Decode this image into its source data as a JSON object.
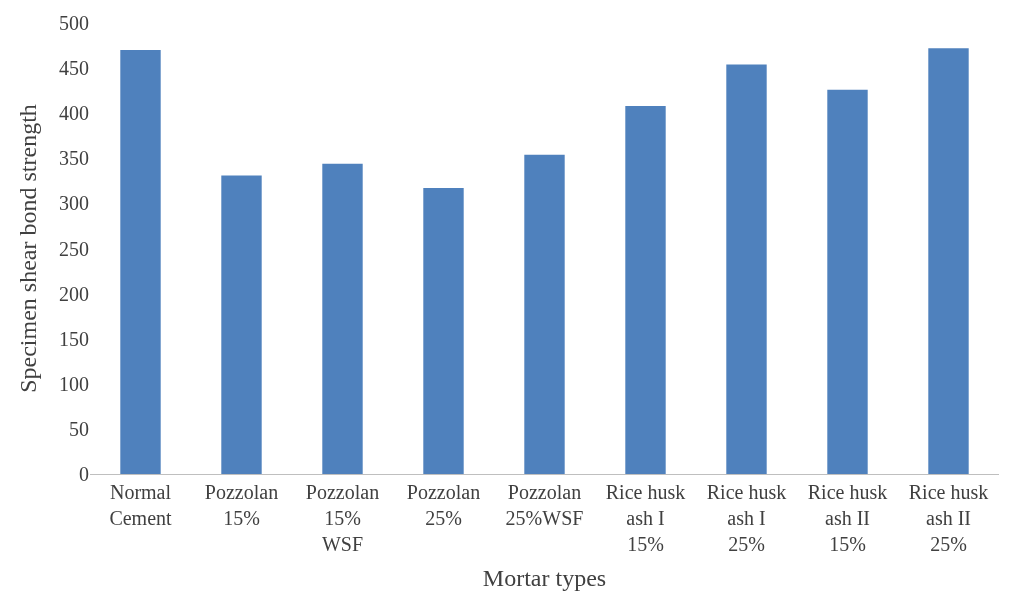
{
  "chart_data": {
    "type": "bar",
    "xlabel": "Mortar types",
    "ylabel": "Specimen shear bond strength",
    "categories": [
      "Normal\nCement",
      "Pozzolan\n15%",
      "Pozzolan\n15%\nWSF",
      "Pozzolan\n25%",
      "Pozzolan\n25%WSF",
      "Rice husk\nash I\n15%",
      "Rice husk\nash I\n25%",
      "Rice husk\nash II\n15%",
      "Rice husk\nash II\n25%"
    ],
    "values": [
      470,
      331,
      344,
      317,
      354,
      408,
      454,
      426,
      472
    ],
    "color": "#4f81bd",
    "ylim": [
      0,
      500
    ],
    "yticks": [
      0,
      50,
      100,
      150,
      200,
      250,
      300,
      350,
      400,
      450,
      500
    ]
  }
}
